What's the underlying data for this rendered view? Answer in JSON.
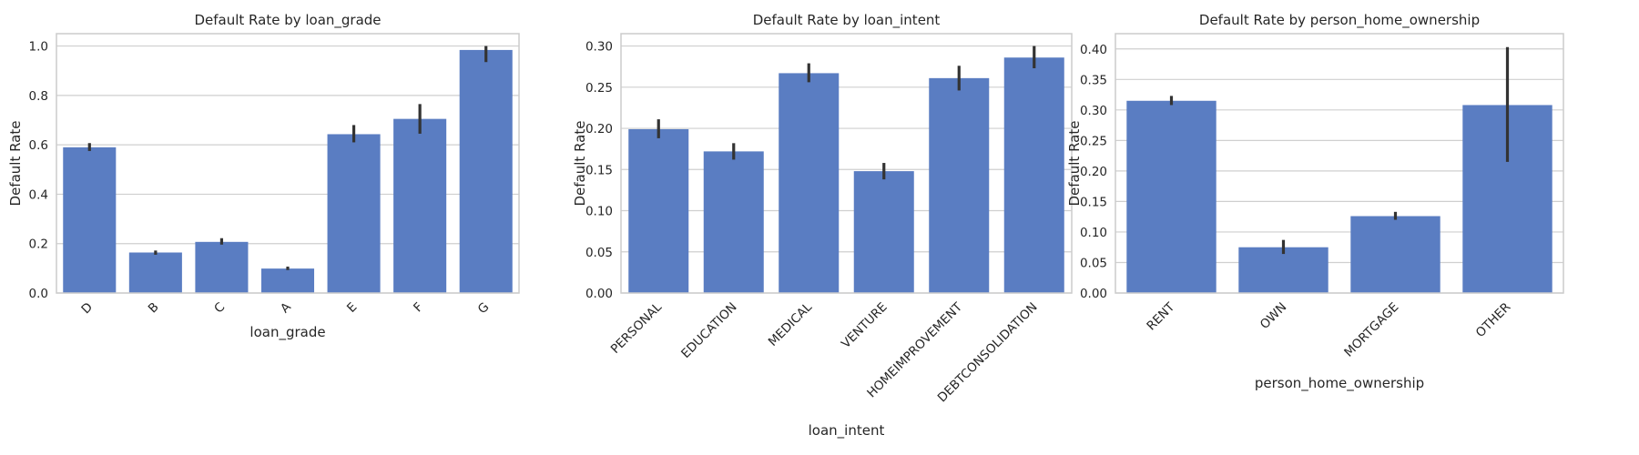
{
  "colors": {
    "bar": "#5a7dc2",
    "errorbar": "#333333",
    "grid": "#cfcfcf",
    "spine": "#cccccc",
    "background": "#ffffff"
  },
  "chart_data": [
    {
      "type": "bar",
      "title": "Default Rate by loan_grade",
      "xlabel": "loan_grade",
      "ylabel": "Default Rate",
      "ylim": [
        0,
        1.05
      ],
      "yticks": [
        "0.0",
        "0.2",
        "0.4",
        "0.6",
        "0.8",
        "1.0"
      ],
      "ytick_values": [
        0,
        0.2,
        0.4,
        0.6,
        0.8,
        1.0
      ],
      "grid": "horizontal",
      "xtick_rotation": 45,
      "categories": [
        "D",
        "B",
        "C",
        "A",
        "E",
        "F",
        "G"
      ],
      "values": [
        0.59,
        0.164,
        0.207,
        0.099,
        0.643,
        0.705,
        0.984
      ],
      "error_low": [
        0.575,
        0.155,
        0.196,
        0.093,
        0.61,
        0.645,
        0.935
      ],
      "error_high": [
        0.607,
        0.172,
        0.222,
        0.107,
        0.68,
        0.765,
        1.0
      ]
    },
    {
      "type": "bar",
      "title": "Default Rate by loan_intent",
      "xlabel": "loan_intent",
      "ylabel": "Default Rate",
      "ylim": [
        0,
        0.315
      ],
      "yticks": [
        "0.00",
        "0.05",
        "0.10",
        "0.15",
        "0.20",
        "0.25",
        "0.30"
      ],
      "ytick_values": [
        0,
        0.05,
        0.1,
        0.15,
        0.2,
        0.25,
        0.3
      ],
      "grid": "horizontal",
      "xtick_rotation": 45,
      "categories": [
        "PERSONAL",
        "EDUCATION",
        "MEDICAL",
        "VENTURE",
        "HOMEIMPROVEMENT",
        "DEBTCONSOLIDATION"
      ],
      "values": [
        0.199,
        0.172,
        0.267,
        0.148,
        0.261,
        0.286
      ],
      "error_low": [
        0.188,
        0.162,
        0.256,
        0.138,
        0.246,
        0.273
      ],
      "error_high": [
        0.211,
        0.182,
        0.279,
        0.158,
        0.276,
        0.3
      ]
    },
    {
      "type": "bar",
      "title": "Default Rate by person_home_ownership",
      "xlabel": "person_home_ownership",
      "ylabel": "Default Rate",
      "ylim": [
        0,
        0.425
      ],
      "yticks": [
        "0.00",
        "0.05",
        "0.10",
        "0.15",
        "0.20",
        "0.25",
        "0.30",
        "0.35",
        "0.40"
      ],
      "ytick_values": [
        0,
        0.05,
        0.1,
        0.15,
        0.2,
        0.25,
        0.3,
        0.35,
        0.4
      ],
      "grid": "horizontal",
      "xtick_rotation": 45,
      "categories": [
        "RENT",
        "OWN",
        "MORTGAGE",
        "OTHER"
      ],
      "values": [
        0.315,
        0.075,
        0.126,
        0.308
      ],
      "error_low": [
        0.308,
        0.064,
        0.12,
        0.215
      ],
      "error_high": [
        0.323,
        0.087,
        0.133,
        0.403
      ]
    }
  ]
}
